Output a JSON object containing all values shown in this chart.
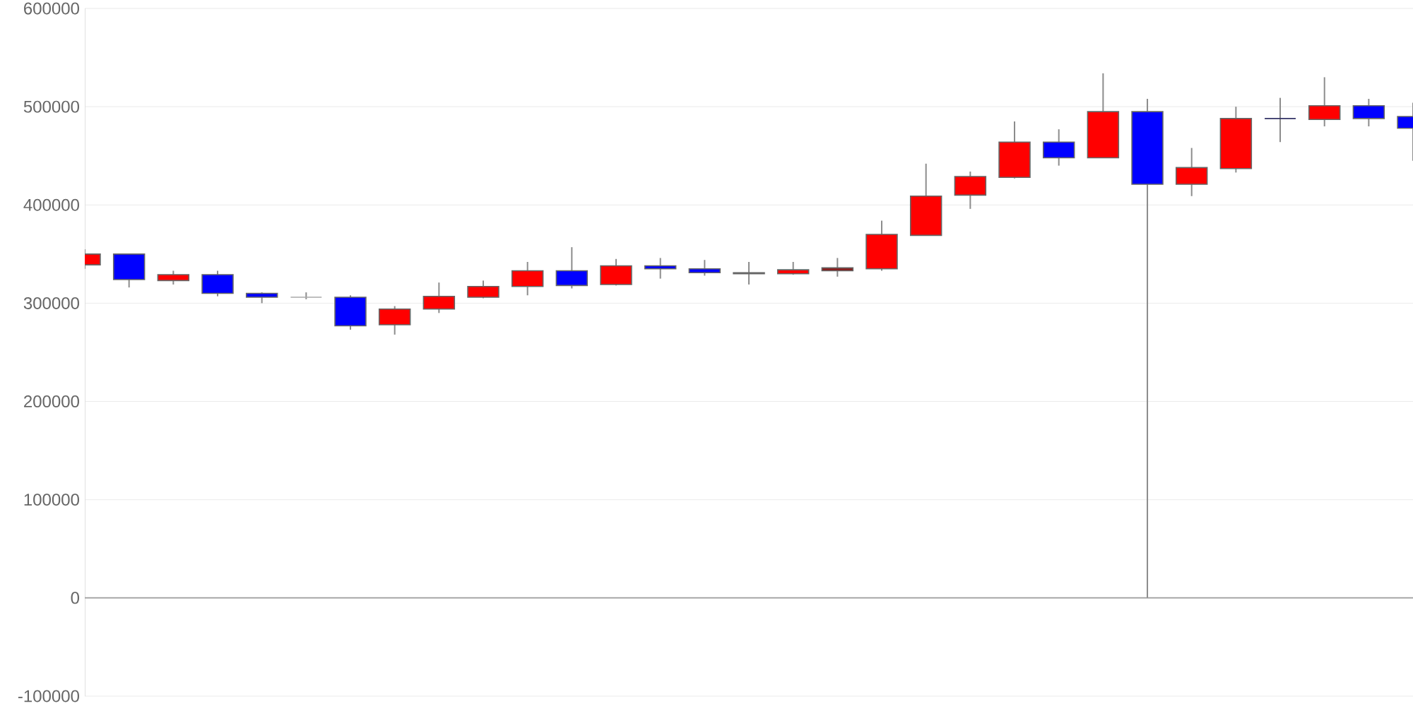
{
  "chart_data": {
    "type": "candlestick",
    "categories": [
      null,
      null,
      null,
      null,
      null,
      null,
      null,
      null,
      null,
      null,
      null,
      null,
      null,
      null,
      null,
      null,
      null,
      null,
      null,
      null,
      null,
      null,
      null,
      null,
      null,
      null,
      null,
      null,
      null,
      null,
      null
    ],
    "ohlc": [
      [
        339000,
        355000,
        335000,
        350000
      ],
      [
        350000,
        350000,
        316000,
        324000
      ],
      [
        323000,
        333000,
        319000,
        329000
      ],
      [
        329000,
        333000,
        307000,
        310000
      ],
      [
        310000,
        311000,
        300000,
        306000
      ],
      [
        306000,
        311000,
        304000,
        306000
      ],
      [
        306000,
        308000,
        273000,
        277000
      ],
      [
        278000,
        297000,
        268000,
        294000
      ],
      [
        294000,
        321000,
        290000,
        307000
      ],
      [
        306000,
        323000,
        305000,
        317000
      ],
      [
        317000,
        342000,
        308000,
        333000
      ],
      [
        333000,
        357000,
        315000,
        318000
      ],
      [
        319000,
        345000,
        318000,
        338000
      ],
      [
        338000,
        346000,
        325000,
        335000
      ],
      [
        335000,
        344000,
        328000,
        331000
      ],
      [
        331000,
        342000,
        319000,
        330000
      ],
      [
        330000,
        342000,
        329000,
        334000
      ],
      [
        333000,
        346000,
        327000,
        336000
      ],
      [
        335000,
        384000,
        333000,
        370000
      ],
      [
        369000,
        442000,
        369000,
        409000
      ],
      [
        410000,
        434000,
        396000,
        429000
      ],
      [
        428000,
        485000,
        427000,
        464000
      ],
      [
        464000,
        477000,
        440000,
        448000
      ],
      [
        448000,
        534000,
        448000,
        495000
      ],
      [
        495000,
        508000,
        0,
        421000
      ],
      [
        421000,
        458000,
        409000,
        438000
      ],
      [
        437000,
        500000,
        433000,
        488000
      ],
      [
        488000,
        509000,
        464000,
        488000
      ],
      [
        487000,
        530000,
        480000,
        501000
      ],
      [
        501000,
        508000,
        480000,
        488000
      ],
      [
        490000,
        504000,
        445000,
        478000
      ]
    ],
    "colors": [
      "#ff0000",
      "#0000ff",
      "#ff0000",
      "#0000ff",
      "#0000ff",
      "#aaaaaa",
      "#0000ff",
      "#ff0000",
      "#ff0000",
      "#ff0000",
      "#ff0000",
      "#0000ff",
      "#ff0000",
      "#0000ff",
      "#0000ff",
      "#55557f",
      "#ff0000",
      "#8b1a1a",
      "#ff0000",
      "#ff0000",
      "#ff0000",
      "#ff0000",
      "#0000ff",
      "#ff0000",
      "#0000ff",
      "#ff0000",
      "#ff0000",
      "#333366",
      "#ff0000",
      "#0000ff",
      "#0000ff"
    ],
    "ylim": [
      -100000,
      600000
    ],
    "yticks": [
      -100000,
      0,
      100000,
      200000,
      300000,
      400000,
      500000,
      600000
    ],
    "grid": "y"
  }
}
